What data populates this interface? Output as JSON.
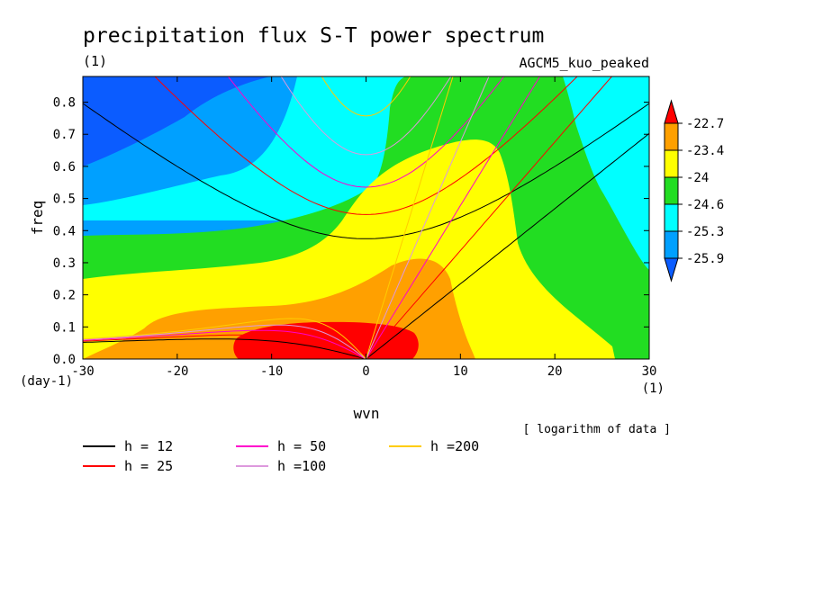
{
  "chart_data": {
    "type": "heatmap",
    "title": "precipitation flux S-T power spectrum",
    "subtitle_left": "(1)",
    "subtitle_right": "AGCM5_kuo_peaked",
    "xlabel": "wvn",
    "ylabel": "freq",
    "x_unit": "(1)",
    "y_unit": "(day-1)",
    "note": "[ logarithm of data ]",
    "xlim": [
      -30,
      30
    ],
    "ylim": [
      0.0,
      0.88
    ],
    "xticks": [
      -30,
      -20,
      -10,
      0,
      10,
      20,
      30
    ],
    "yticks": [
      0.0,
      0.1,
      0.2,
      0.3,
      0.4,
      0.5,
      0.6,
      0.7,
      0.8
    ],
    "contour_levels": [
      -25.9,
      -25.3,
      -24.6,
      -24,
      -23.4,
      -22.7
    ],
    "colorbar_labels": [
      "-22.7",
      "-23.4",
      "-24",
      "-24.6",
      "-25.3",
      "-25.9"
    ],
    "colors": {
      "lt_-25.9": "#0b5cff",
      "-25.9_to_-25.3": "#00a0ff",
      "-25.3_to_-24.6": "#00ffff",
      "-24.6_to_-24": "#22dd22",
      "-24_to_-23.4": "#ffff00",
      "-23.4_to_-22.7": "#ffa000",
      "gt_-22.7": "#ff0000"
    },
    "dispersion_curves": [
      {
        "label": "h = 12",
        "h": 12,
        "color": "#000000"
      },
      {
        "label": "h = 25",
        "h": 25,
        "color": "#ff0000"
      },
      {
        "label": "h = 50",
        "h": 50,
        "color": "#ff00cc"
      },
      {
        "label": "h =100",
        "h": 100,
        "color": "#dd99dd"
      },
      {
        "label": "h =200",
        "h": 200,
        "color": "#ffcc00"
      }
    ]
  }
}
